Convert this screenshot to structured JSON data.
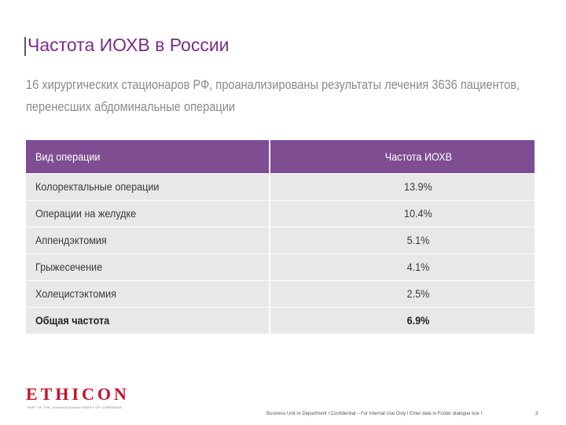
{
  "slide": {
    "title": "Частота ИОХВ в России",
    "intro_line1": "16 хирургических стационаров РФ, проанализированы результаты лечения 3636 пациентов,",
    "intro_line2": "перенесших абдоминальные операции"
  },
  "table": {
    "header": {
      "col1": "Вид операции",
      "col2": "Частота ИОХВ"
    },
    "rows": [
      {
        "operation": "Колоректальные операции",
        "rate": "13.9%"
      },
      {
        "operation": "Операции на желудке",
        "rate": "10.4%"
      },
      {
        "operation": "Аппендэктомия",
        "rate": "5.1%"
      },
      {
        "operation": "Грыжесечение",
        "rate": "4.1%"
      },
      {
        "operation": "Холецистэктомия",
        "rate": "2.5%"
      }
    ],
    "total": {
      "operation": "Общая частота",
      "rate": "6.9%"
    }
  },
  "footer": {
    "logo": "ETHICON",
    "logo_sub": "PART OF THE Johnson&Johnson FAMILY OF COMPANIES",
    "text": "Business Unit or Department  I  Confidential – For Internal Use Only  I  Enter date in Footer dialogue box  I",
    "page": "3"
  },
  "colors": {
    "title": "#7a2d87",
    "header_bg": "#7e4d92",
    "row_bg": "#e8e8e8",
    "logo": "#c8102e"
  }
}
